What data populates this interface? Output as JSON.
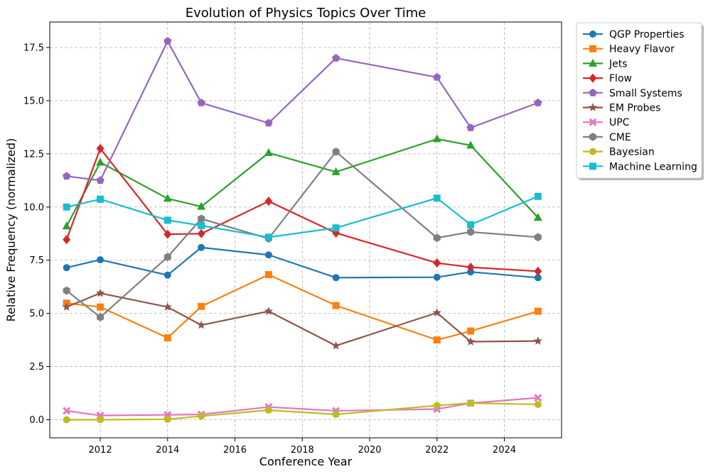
{
  "chart_data": {
    "type": "line",
    "title": "Evolution of Physics Topics Over Time",
    "xlabel": "Conference Year",
    "ylabel": "Relative Frequency (normalized)",
    "xlim": [
      2010.5,
      2025.7
    ],
    "ylim": [
      -0.85,
      18.7
    ],
    "xticks": [
      2012,
      2014,
      2016,
      2018,
      2020,
      2022,
      2024
    ],
    "yticks": [
      0.0,
      2.5,
      5.0,
      7.5,
      10.0,
      12.5,
      15.0,
      17.5
    ],
    "xtick_labels": [
      "2012",
      "2014",
      "2016",
      "2018",
      "2020",
      "2022",
      "2024"
    ],
    "ytick_labels": [
      "0.0",
      "2.5",
      "5.0",
      "7.5",
      "10.0",
      "12.5",
      "15.0",
      "17.5"
    ],
    "grid": true,
    "legend_position": "outside-top-right",
    "x": [
      2011,
      2012,
      2014,
      2015,
      2017,
      2019,
      2022,
      2023,
      2025
    ],
    "series": [
      {
        "name": "QGP Properties",
        "color": "#1f77b4",
        "marker": "circle",
        "values": [
          7.15,
          7.52,
          6.8,
          8.1,
          7.75,
          6.68,
          6.7,
          6.95,
          6.68
        ]
      },
      {
        "name": "Heavy Flavor",
        "color": "#ff7f0e",
        "marker": "square",
        "values": [
          5.48,
          5.3,
          3.85,
          5.33,
          6.82,
          5.37,
          3.75,
          4.17,
          5.1
        ]
      },
      {
        "name": "Jets",
        "color": "#2ca02c",
        "marker": "triangle",
        "values": [
          9.1,
          12.1,
          10.4,
          10.02,
          12.55,
          11.65,
          13.2,
          12.9,
          9.5
        ]
      },
      {
        "name": "Flow",
        "color": "#d62728",
        "marker": "diamond",
        "values": [
          8.47,
          12.75,
          8.72,
          8.75,
          10.27,
          8.78,
          7.37,
          7.17,
          6.98
        ]
      },
      {
        "name": "Small Systems",
        "color": "#9467bd",
        "marker": "pentagon",
        "values": [
          11.45,
          11.25,
          17.8,
          14.9,
          13.95,
          17.0,
          16.1,
          13.73,
          14.9
        ]
      },
      {
        "name": "EM Probes",
        "color": "#8c564b",
        "marker": "star",
        "values": [
          5.3,
          5.95,
          5.3,
          4.45,
          5.1,
          3.48,
          5.03,
          3.67,
          3.7
        ]
      },
      {
        "name": "UPC",
        "color": "#e377c2",
        "marker": "x",
        "values": [
          0.42,
          0.2,
          0.23,
          0.25,
          0.6,
          0.42,
          0.5,
          0.78,
          1.03
        ]
      },
      {
        "name": "CME",
        "color": "#7f7f7f",
        "marker": "hexagon",
        "values": [
          6.07,
          4.82,
          7.65,
          9.45,
          8.52,
          12.6,
          8.55,
          8.83,
          8.58
        ]
      },
      {
        "name": "Bayesian",
        "color": "#bcbd22",
        "marker": "circle",
        "values": [
          0.0,
          0.0,
          0.02,
          0.17,
          0.45,
          0.25,
          0.67,
          0.78,
          0.72
        ]
      },
      {
        "name": "Machine Learning",
        "color": "#17becf",
        "marker": "square",
        "values": [
          10.0,
          10.37,
          9.38,
          9.13,
          8.58,
          9.02,
          10.42,
          9.17,
          10.5
        ]
      }
    ]
  }
}
